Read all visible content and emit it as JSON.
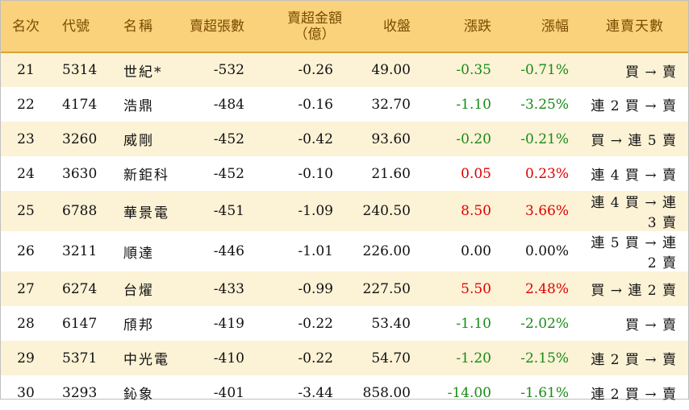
{
  "headers": {
    "rank": "名次",
    "code": "代號",
    "name": "名稱",
    "sell_lots": "賣超張數",
    "sell_amount_line1": "賣超金額",
    "sell_amount_line2": "（億）",
    "close": "收盤",
    "change": "漲跌",
    "change_pct": "漲幅",
    "streak": "連賣天數"
  },
  "rows": [
    {
      "rank": "21",
      "code": "5314",
      "name": "世紀*",
      "sell_lots": "-532",
      "sell_amount": "-0.26",
      "close": "49.00",
      "change": "-0.35",
      "change_pct": "-0.71%",
      "trend": "down",
      "streak": "買 → 賣"
    },
    {
      "rank": "22",
      "code": "4174",
      "name": "浩鼎",
      "sell_lots": "-484",
      "sell_amount": "-0.16",
      "close": "32.70",
      "change": "-1.10",
      "change_pct": "-3.25%",
      "trend": "down",
      "streak": "連 2 買 → 賣"
    },
    {
      "rank": "23",
      "code": "3260",
      "name": "威剛",
      "sell_lots": "-452",
      "sell_amount": "-0.42",
      "close": "93.60",
      "change": "-0.20",
      "change_pct": "-0.21%",
      "trend": "down",
      "streak": "買 → 連 5 賣"
    },
    {
      "rank": "24",
      "code": "3630",
      "name": "新鉅科",
      "sell_lots": "-452",
      "sell_amount": "-0.10",
      "close": "21.60",
      "change": "0.05",
      "change_pct": "0.23%",
      "trend": "up",
      "streak": "連 4 買 → 賣"
    },
    {
      "rank": "25",
      "code": "6788",
      "name": "華景電",
      "sell_lots": "-451",
      "sell_amount": "-1.09",
      "close": "240.50",
      "change": "8.50",
      "change_pct": "3.66%",
      "trend": "up",
      "streak": "連 4 買 → 連 3 賣"
    },
    {
      "rank": "26",
      "code": "3211",
      "name": "順達",
      "sell_lots": "-446",
      "sell_amount": "-1.01",
      "close": "226.00",
      "change": "0.00",
      "change_pct": "0.00%",
      "trend": "flat",
      "streak": "連 5 買 → 連 2 賣"
    },
    {
      "rank": "27",
      "code": "6274",
      "name": "台燿",
      "sell_lots": "-433",
      "sell_amount": "-0.99",
      "close": "227.50",
      "change": "5.50",
      "change_pct": "2.48%",
      "trend": "up",
      "streak": "買 → 連 2 賣"
    },
    {
      "rank": "28",
      "code": "6147",
      "name": "頎邦",
      "sell_lots": "-419",
      "sell_amount": "-0.22",
      "close": "53.40",
      "change": "-1.10",
      "change_pct": "-2.02%",
      "trend": "down",
      "streak": "買 → 賣"
    },
    {
      "rank": "29",
      "code": "5371",
      "name": "中光電",
      "sell_lots": "-410",
      "sell_amount": "-0.22",
      "close": "54.70",
      "change": "-1.20",
      "change_pct": "-2.15%",
      "trend": "down",
      "streak": "連 2 買 → 賣"
    },
    {
      "rank": "30",
      "code": "3293",
      "name": "鈊象",
      "sell_lots": "-401",
      "sell_amount": "-3.44",
      "close": "858.00",
      "change": "-14.00",
      "change_pct": "-1.61%",
      "trend": "down",
      "streak": "連 2 買 → 賣"
    }
  ],
  "colors": {
    "header_bg": "#f9d27b",
    "header_text": "#7a4a00",
    "stripe_bg": "#fcf2d6",
    "up": "#e00000",
    "down": "#1a8a1a"
  }
}
